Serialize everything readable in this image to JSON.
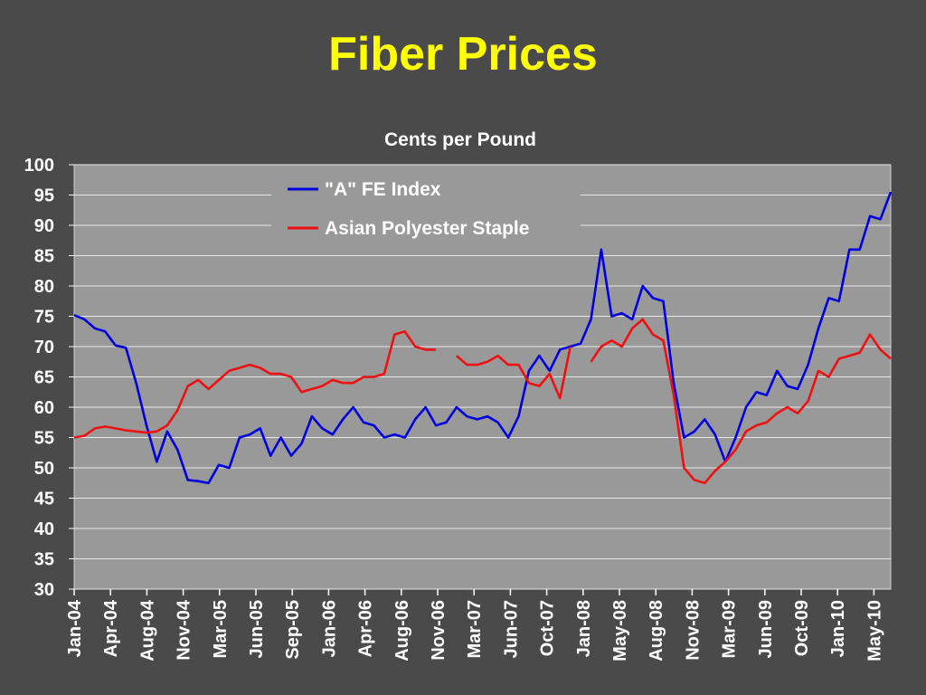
{
  "slide": {
    "title": "Fiber Prices"
  },
  "colors": {
    "background": "#4a4a4a",
    "plot": "#999999",
    "grid": "#e6e6e6",
    "title": "#ffff00",
    "text": "#ffffff"
  },
  "chart_data": {
    "type": "line",
    "title": "",
    "ylabel": "Cents per Pound",
    "xlabel": "",
    "ylim": [
      30,
      100
    ],
    "yticks": [
      100,
      95,
      90,
      85,
      80,
      75,
      70,
      65,
      60,
      55,
      50,
      45,
      40,
      35,
      30
    ],
    "grid": true,
    "legend_position": "top-center",
    "x_tick_labels": [
      "Jan-04",
      "Apr-04",
      "Aug-04",
      "Nov-04",
      "Mar-05",
      "Jun-05",
      "Sep-05",
      "Jan-06",
      "Apr-06",
      "Aug-06",
      "Nov-06",
      "Mar-07",
      "Jun-07",
      "Oct-07",
      "Jan-08",
      "May-08",
      "Aug-08",
      "Nov-08",
      "Mar-09",
      "Jun-09",
      "Oct-09",
      "Jan-10",
      "May-10"
    ],
    "x_range": [
      "2004-01",
      "2010-08"
    ],
    "series": [
      {
        "name": "\"A\" FE Index",
        "color": "#0000dd",
        "points": [
          [
            "2004-01",
            75.2
          ],
          [
            "2004-02",
            74.5
          ],
          [
            "2004-03",
            73.0
          ],
          [
            "2004-04",
            72.5
          ],
          [
            "2004-05",
            70.2
          ],
          [
            "2004-06",
            69.8
          ],
          [
            "2004-07",
            64.0
          ],
          [
            "2004-08",
            57.0
          ],
          [
            "2004-09",
            51.0
          ],
          [
            "2004-10",
            56.0
          ],
          [
            "2004-11",
            53.0
          ],
          [
            "2004-12",
            48.0
          ],
          [
            "2005-01",
            47.8
          ],
          [
            "2005-02",
            47.5
          ],
          [
            "2005-03",
            50.5
          ],
          [
            "2005-04",
            50.0
          ],
          [
            "2005-05",
            55.0
          ],
          [
            "2005-06",
            55.5
          ],
          [
            "2005-07",
            56.5
          ],
          [
            "2005-08",
            52.0
          ],
          [
            "2005-09",
            55.0
          ],
          [
            "2005-10",
            52.0
          ],
          [
            "2005-11",
            54.0
          ],
          [
            "2005-12",
            58.5
          ],
          [
            "2006-01",
            56.5
          ],
          [
            "2006-02",
            55.5
          ],
          [
            "2006-03",
            58.0
          ],
          [
            "2006-04",
            60.0
          ],
          [
            "2006-05",
            57.5
          ],
          [
            "2006-06",
            57.0
          ],
          [
            "2006-07",
            55.0
          ],
          [
            "2006-08",
            55.5
          ],
          [
            "2006-09",
            55.0
          ],
          [
            "2006-10",
            58.0
          ],
          [
            "2006-11",
            60.0
          ],
          [
            "2006-12",
            57.0
          ],
          [
            "2007-01",
            57.5
          ],
          [
            "2007-02",
            60.0
          ],
          [
            "2007-03",
            58.5
          ],
          [
            "2007-04",
            58.0
          ],
          [
            "2007-05",
            58.5
          ],
          [
            "2007-06",
            57.5
          ],
          [
            "2007-07",
            55.0
          ],
          [
            "2007-08",
            58.5
          ],
          [
            "2007-09",
            66.0
          ],
          [
            "2007-10",
            68.5
          ],
          [
            "2007-11",
            66.0
          ],
          [
            "2007-12",
            69.5
          ],
          [
            "2008-01",
            70.0
          ],
          [
            "2008-02",
            70.5
          ],
          [
            "2008-03",
            74.5
          ],
          [
            "2008-04",
            86.0
          ],
          [
            "2008-05",
            75.0
          ],
          [
            "2008-06",
            75.5
          ],
          [
            "2008-07",
            74.5
          ],
          [
            "2008-08",
            80.0
          ],
          [
            "2008-09",
            78.0
          ],
          [
            "2008-10",
            77.5
          ],
          [
            "2008-11",
            64.0
          ],
          [
            "2008-12",
            55.0
          ],
          [
            "2009-01",
            56.0
          ],
          [
            "2009-02",
            58.0
          ],
          [
            "2009-03",
            55.5
          ],
          [
            "2009-04",
            51.0
          ],
          [
            "2009-05",
            55.0
          ],
          [
            "2009-06",
            60.0
          ],
          [
            "2009-07",
            62.5
          ],
          [
            "2009-08",
            62.0
          ],
          [
            "2009-09",
            66.0
          ],
          [
            "2009-10",
            63.5
          ],
          [
            "2009-11",
            63.0
          ],
          [
            "2009-12",
            67.0
          ],
          [
            "2010-01",
            73.0
          ],
          [
            "2010-02",
            78.0
          ],
          [
            "2010-03",
            77.5
          ],
          [
            "2010-04",
            86.0
          ],
          [
            "2010-05",
            86.0
          ],
          [
            "2010-06",
            91.5
          ],
          [
            "2010-07",
            91.0
          ],
          [
            "2010-08",
            95.5
          ]
        ]
      },
      {
        "name": "Asian Polyester Staple",
        "color": "#ee1111",
        "points": [
          [
            "2004-01",
            55.0
          ],
          [
            "2004-02",
            55.3
          ],
          [
            "2004-03",
            56.5
          ],
          [
            "2004-04",
            56.8
          ],
          [
            "2004-05",
            56.5
          ],
          [
            "2004-06",
            56.2
          ],
          [
            "2004-07",
            56.0
          ],
          [
            "2004-08",
            55.8
          ],
          [
            "2004-09",
            56.0
          ],
          [
            "2004-10",
            57.0
          ],
          [
            "2004-11",
            59.5
          ],
          [
            "2004-12",
            63.5
          ],
          [
            "2005-01",
            64.5
          ],
          [
            "2005-02",
            63.0
          ],
          [
            "2005-03",
            64.5
          ],
          [
            "2005-04",
            66.0
          ],
          [
            "2005-05",
            66.5
          ],
          [
            "2005-06",
            67.0
          ],
          [
            "2005-07",
            66.5
          ],
          [
            "2005-08",
            65.5
          ],
          [
            "2005-09",
            65.5
          ],
          [
            "2005-10",
            65.0
          ],
          [
            "2005-11",
            62.5
          ],
          [
            "2005-12",
            63.0
          ],
          [
            "2006-01",
            63.5
          ],
          [
            "2006-02",
            64.5
          ],
          [
            "2006-03",
            64.0
          ],
          [
            "2006-04",
            64.0
          ],
          [
            "2006-05",
            65.0
          ],
          [
            "2006-06",
            65.0
          ],
          [
            "2006-07",
            65.5
          ],
          [
            "2006-08",
            72.0
          ],
          [
            "2006-09",
            72.5
          ],
          [
            "2006-10",
            70.0
          ],
          [
            "2006-11",
            69.5
          ],
          [
            "2006-12",
            69.5
          ],
          [
            "2007-01",
            null
          ],
          [
            "2007-02",
            68.5
          ],
          [
            "2007-03",
            67.0
          ],
          [
            "2007-04",
            67.0
          ],
          [
            "2007-05",
            67.5
          ],
          [
            "2007-06",
            68.5
          ],
          [
            "2007-07",
            67.0
          ],
          [
            "2007-08",
            67.0
          ],
          [
            "2007-09",
            64.0
          ],
          [
            "2007-10",
            63.5
          ],
          [
            "2007-11",
            65.5
          ],
          [
            "2007-12",
            61.5
          ],
          [
            "2008-01",
            70.0
          ],
          [
            "2008-02",
            null
          ],
          [
            "2008-03",
            67.5
          ],
          [
            "2008-04",
            70.0
          ],
          [
            "2008-05",
            71.0
          ],
          [
            "2008-06",
            70.0
          ],
          [
            "2008-07",
            73.0
          ],
          [
            "2008-08",
            74.5
          ],
          [
            "2008-09",
            72.0
          ],
          [
            "2008-10",
            71.0
          ],
          [
            "2008-11",
            62.0
          ],
          [
            "2008-12",
            50.0
          ],
          [
            "2009-01",
            48.0
          ],
          [
            "2009-02",
            47.5
          ],
          [
            "2009-03",
            49.5
          ],
          [
            "2009-04",
            51.0
          ],
          [
            "2009-05",
            53.0
          ],
          [
            "2009-06",
            56.0
          ],
          [
            "2009-07",
            57.0
          ],
          [
            "2009-08",
            57.5
          ],
          [
            "2009-09",
            59.0
          ],
          [
            "2009-10",
            60.0
          ],
          [
            "2009-11",
            59.0
          ],
          [
            "2009-12",
            61.0
          ],
          [
            "2010-01",
            66.0
          ],
          [
            "2010-02",
            65.0
          ],
          [
            "2010-03",
            68.0
          ],
          [
            "2010-04",
            68.5
          ],
          [
            "2010-05",
            69.0
          ],
          [
            "2010-06",
            72.0
          ],
          [
            "2010-07",
            69.5
          ],
          [
            "2010-08",
            68.0
          ]
        ]
      }
    ]
  }
}
